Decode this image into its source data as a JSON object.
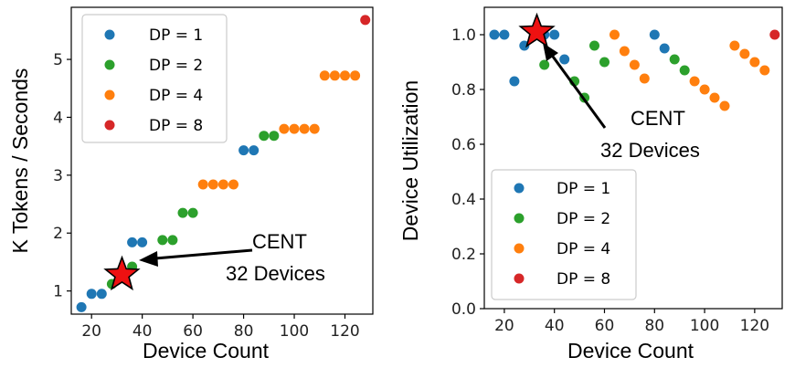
{
  "chart_data": [
    {
      "type": "scatter",
      "title": "",
      "xlabel": "Device Count",
      "ylabel": "K Tokens / Seconds",
      "xlim": [
        12,
        131
      ],
      "ylim": [
        0.6,
        5.9
      ],
      "xticks": [
        20,
        40,
        60,
        80,
        100,
        120
      ],
      "yticks": [
        1,
        2,
        3,
        4,
        5
      ],
      "grid": false,
      "legend_position": "top-left",
      "series": [
        {
          "name": "DP = 1",
          "color": "#1f77b4",
          "points": [
            [
              16,
              0.72
            ],
            [
              20,
              0.95
            ],
            [
              24,
              0.95
            ],
            [
              36,
              1.84
            ],
            [
              40,
              1.84
            ],
            [
              80,
              3.43
            ],
            [
              84,
              3.43
            ]
          ]
        },
        {
          "name": "DP = 2",
          "color": "#2ca02c",
          "points": [
            [
              28,
              1.12
            ],
            [
              36,
              1.42
            ],
            [
              48,
              1.88
            ],
            [
              52,
              1.88
            ],
            [
              56,
              2.35
            ],
            [
              60,
              2.35
            ],
            [
              88,
              3.68
            ],
            [
              92,
              3.68
            ]
          ]
        },
        {
          "name": "DP = 4",
          "color": "#ff7f0e",
          "points": [
            [
              64,
              2.84
            ],
            [
              68,
              2.84
            ],
            [
              72,
              2.84
            ],
            [
              76,
              2.84
            ],
            [
              96,
              3.8
            ],
            [
              100,
              3.8
            ],
            [
              104,
              3.8
            ],
            [
              108,
              3.8
            ],
            [
              112,
              4.72
            ],
            [
              116,
              4.72
            ],
            [
              120,
              4.72
            ],
            [
              124,
              4.72
            ]
          ]
        },
        {
          "name": "DP = 8",
          "color": "#d62728",
          "points": [
            [
              128,
              5.68
            ]
          ]
        }
      ],
      "highlight": {
        "x": 32,
        "y": 1.28
      },
      "annotation": {
        "line1": "CENT",
        "line2": "32 Devices"
      }
    },
    {
      "type": "scatter",
      "title": "",
      "xlabel": "Device Count",
      "ylabel": "Device Utilization",
      "xlim": [
        12,
        131
      ],
      "ylim": [
        0.0,
        1.1
      ],
      "xticks": [
        20,
        40,
        60,
        80,
        100,
        120
      ],
      "yticks": [
        "0.0",
        "0.2",
        "0.4",
        "0.6",
        "0.8",
        "1.0"
      ],
      "grid": false,
      "legend_position": "bottom-left",
      "series": [
        {
          "name": "DP = 1",
          "color": "#1f77b4",
          "points": [
            [
              16,
              1.0
            ],
            [
              20,
              1.0
            ],
            [
              24,
              0.83
            ],
            [
              28,
              0.96
            ],
            [
              36,
              1.0
            ],
            [
              40,
              1.0
            ],
            [
              44,
              0.91
            ],
            [
              80,
              1.0
            ],
            [
              84,
              0.95
            ]
          ]
        },
        {
          "name": "DP = 2",
          "color": "#2ca02c",
          "points": [
            [
              36,
              0.89
            ],
            [
              48,
              0.83
            ],
            [
              52,
              0.77
            ],
            [
              56,
              0.96
            ],
            [
              60,
              0.9
            ],
            [
              88,
              0.91
            ],
            [
              92,
              0.87
            ]
          ]
        },
        {
          "name": "DP = 4",
          "color": "#ff7f0e",
          "points": [
            [
              64,
              1.0
            ],
            [
              68,
              0.94
            ],
            [
              72,
              0.89
            ],
            [
              76,
              0.84
            ],
            [
              96,
              0.83
            ],
            [
              100,
              0.8
            ],
            [
              104,
              0.77
            ],
            [
              108,
              0.74
            ],
            [
              112,
              0.96
            ],
            [
              116,
              0.93
            ],
            [
              120,
              0.9
            ],
            [
              124,
              0.87
            ]
          ]
        },
        {
          "name": "DP = 8",
          "color": "#d62728",
          "points": [
            [
              128,
              1.0
            ]
          ]
        }
      ],
      "highlight": {
        "x": 33,
        "y": 1.01
      },
      "annotation": {
        "line1": "CENT",
        "line2": "32 Devices"
      }
    }
  ]
}
